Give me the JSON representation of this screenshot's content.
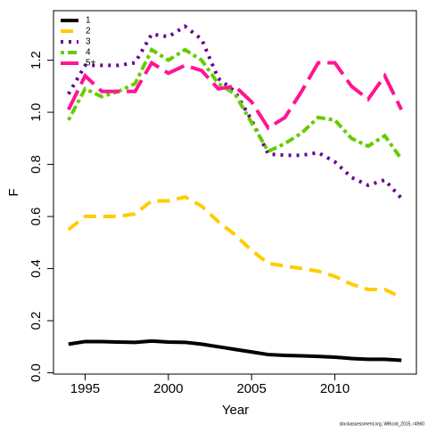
{
  "chart_data": {
    "type": "line",
    "xlabel": "Year",
    "ylabel": "F",
    "footnote": "stockassessment.org, WBcod_2015, r4960",
    "x": [
      1994,
      1995,
      1996,
      1997,
      1998,
      1999,
      2000,
      2001,
      2002,
      2003,
      2004,
      2005,
      2006,
      2007,
      2008,
      2009,
      2010,
      2011,
      2012,
      2013,
      2014
    ],
    "series": [
      {
        "name": "1",
        "color": "#000000",
        "dash": "",
        "values": [
          0.11,
          0.12,
          0.12,
          0.118,
          0.117,
          0.122,
          0.118,
          0.117,
          0.11,
          0.1,
          0.09,
          0.08,
          0.07,
          0.067,
          0.065,
          0.063,
          0.06,
          0.055,
          0.052,
          0.052,
          0.048
        ]
      },
      {
        "name": "2",
        "color": "#ffcc00",
        "dash": "14 8",
        "values": [
          0.55,
          0.6,
          0.6,
          0.6,
          0.61,
          0.66,
          0.66,
          0.675,
          0.64,
          0.58,
          0.53,
          0.47,
          0.42,
          0.41,
          0.4,
          0.39,
          0.37,
          0.34,
          0.32,
          0.32,
          0.29
        ]
      },
      {
        "name": "3",
        "color": "#660099",
        "dash": "3 6",
        "values": [
          1.07,
          1.18,
          1.18,
          1.18,
          1.19,
          1.3,
          1.29,
          1.33,
          1.28,
          1.13,
          1.08,
          0.97,
          0.84,
          0.835,
          0.835,
          0.845,
          0.81,
          0.75,
          0.72,
          0.74,
          0.67
        ]
      },
      {
        "name": "4",
        "color": "#66cc00",
        "dash": "4 4 10 4",
        "values": [
          0.97,
          1.09,
          1.06,
          1.08,
          1.11,
          1.24,
          1.2,
          1.24,
          1.2,
          1.11,
          1.07,
          0.96,
          0.85,
          0.88,
          0.92,
          0.98,
          0.97,
          0.9,
          0.87,
          0.91,
          0.82
        ]
      },
      {
        "name": "5+",
        "color": "#ff1493",
        "dash": "24 8",
        "values": [
          1.01,
          1.14,
          1.08,
          1.08,
          1.08,
          1.19,
          1.15,
          1.18,
          1.16,
          1.09,
          1.1,
          1.04,
          0.94,
          0.98,
          1.08,
          1.19,
          1.19,
          1.1,
          1.05,
          1.14,
          1.01
        ]
      }
    ],
    "xlim": [
      1993.1,
      2014.9
    ],
    "xticks": [
      1995,
      2000,
      2005,
      2010
    ],
    "ylim": [
      -0.005,
      1.39
    ],
    "yticks": [
      {
        "value": 0,
        "label": "0.0"
      },
      {
        "value": 0.2,
        "label": "0.2"
      },
      {
        "value": 0.4,
        "label": "0.4"
      },
      {
        "value": 0.6,
        "label": "0.6"
      },
      {
        "value": 0.8,
        "label": "0.8"
      },
      {
        "value": 1,
        "label": "1.0"
      },
      {
        "value": 1.2,
        "label": "1.2"
      }
    ],
    "legend": "top-left"
  }
}
